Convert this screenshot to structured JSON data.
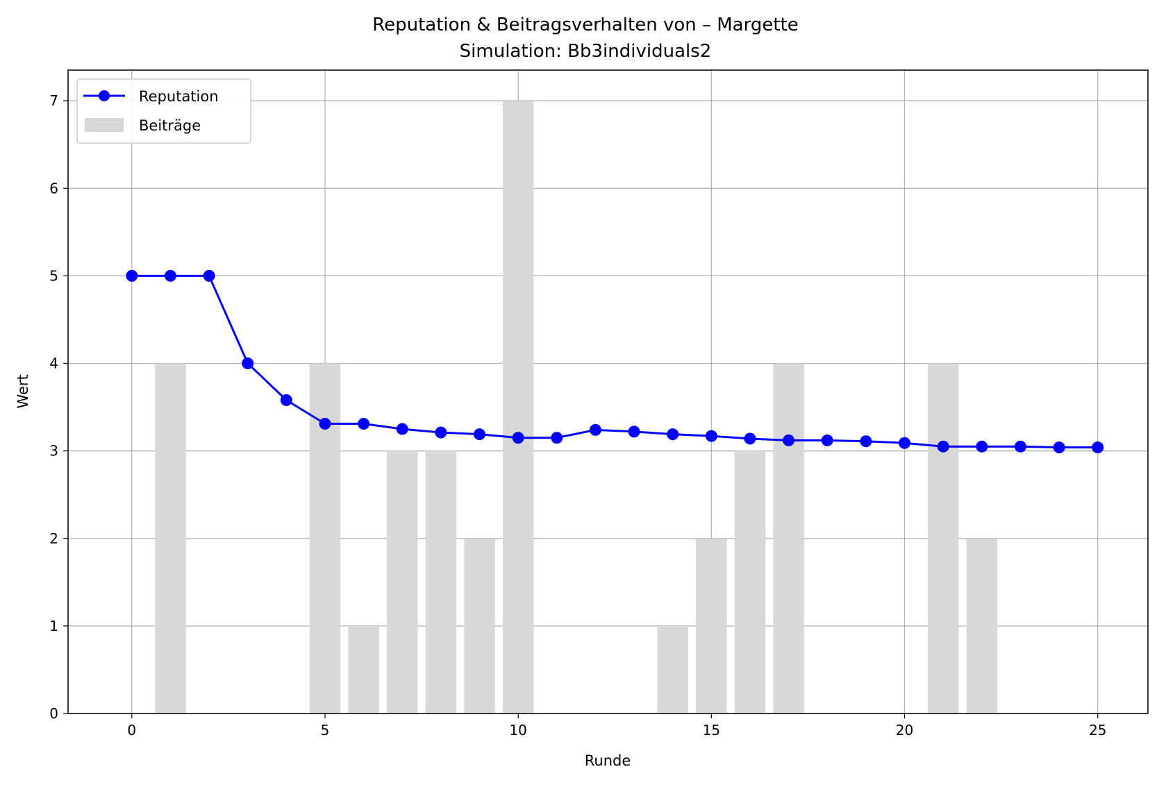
{
  "chart_data": {
    "type": "bar",
    "title": "Reputation & Beitragsverhalten von – Margette",
    "subtitle": "Simulation: Bb3individuals2",
    "xlabel": "Runde",
    "ylabel": "Wert",
    "xlim": [
      -1.65,
      26.3
    ],
    "ylim": [
      0,
      7.35
    ],
    "xticks": [
      0,
      5,
      10,
      15,
      20,
      25
    ],
    "yticks": [
      0,
      1,
      2,
      3,
      4,
      5,
      6,
      7
    ],
    "grid": true,
    "legend_position": "top-left",
    "x": [
      0,
      1,
      2,
      3,
      4,
      5,
      6,
      7,
      8,
      9,
      10,
      11,
      12,
      13,
      14,
      15,
      16,
      17,
      18,
      19,
      20,
      21,
      22,
      23,
      24,
      25
    ],
    "series": [
      {
        "name": "Reputation",
        "kind": "line",
        "color": "#0000ff",
        "values": [
          5.0,
          5.0,
          5.0,
          4.0,
          3.58,
          3.31,
          3.31,
          3.25,
          3.21,
          3.19,
          3.15,
          3.15,
          3.24,
          3.22,
          3.19,
          3.17,
          3.14,
          3.12,
          3.12,
          3.11,
          3.09,
          3.05,
          3.05,
          3.05,
          3.04,
          3.04
        ]
      },
      {
        "name": "Beiträge",
        "kind": "bar",
        "color": "#d8d8d8",
        "values": [
          0,
          4,
          0,
          0,
          0,
          4,
          1,
          3,
          3,
          2,
          7,
          0,
          0,
          0,
          1,
          2,
          3,
          4,
          0,
          0,
          0,
          4,
          2,
          0,
          0,
          0
        ]
      }
    ]
  }
}
